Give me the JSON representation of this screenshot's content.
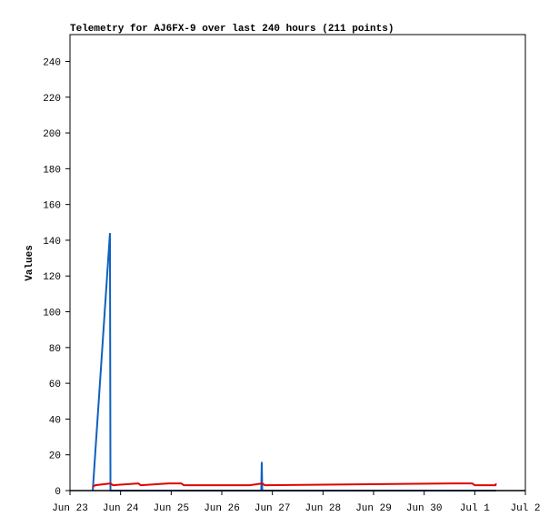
{
  "chart_data": {
    "type": "line",
    "title": "Telemetry for AJ6FX-9 over last 240 hours (211 points)",
    "y_label": "Values",
    "xlim": [
      0,
      9
    ],
    "xticks": [
      {
        "value": 0,
        "label": "Jun 23"
      },
      {
        "value": 1,
        "label": "Jun 24"
      },
      {
        "value": 2,
        "label": "Jun 25"
      },
      {
        "value": 3,
        "label": "Jun 26"
      },
      {
        "value": 4,
        "label": "Jun 27"
      },
      {
        "value": 5,
        "label": "Jun 28"
      },
      {
        "value": 6,
        "label": "Jun 29"
      },
      {
        "value": 7,
        "label": "Jun 30"
      },
      {
        "value": 8,
        "label": "Jul 1"
      },
      {
        "value": 9,
        "label": "Jul 2"
      }
    ],
    "ylim": [
      0,
      255
    ],
    "yticks": [
      0,
      20,
      40,
      60,
      80,
      100,
      120,
      140,
      160,
      180,
      200,
      220,
      240
    ],
    "series": [
      {
        "color": "#1060c0",
        "x": [
          0.45,
          0.79,
          0.8,
          3.78,
          3.79,
          3.8,
          8.42
        ],
        "values": [
          0,
          144,
          0,
          0,
          16,
          0,
          0
        ]
      },
      {
        "color": "#e00000",
        "x": [
          0.45,
          0.5,
          0.8,
          0.85,
          1.35,
          1.4,
          1.95,
          2.2,
          2.25,
          3.55,
          3.8,
          3.85,
          7.55,
          7.95,
          8.0,
          8.41,
          8.42
        ],
        "values": [
          2,
          3,
          4,
          3,
          4,
          3,
          4,
          4,
          3,
          3,
          4,
          3,
          4,
          4,
          3,
          3,
          4
        ]
      }
    ]
  }
}
